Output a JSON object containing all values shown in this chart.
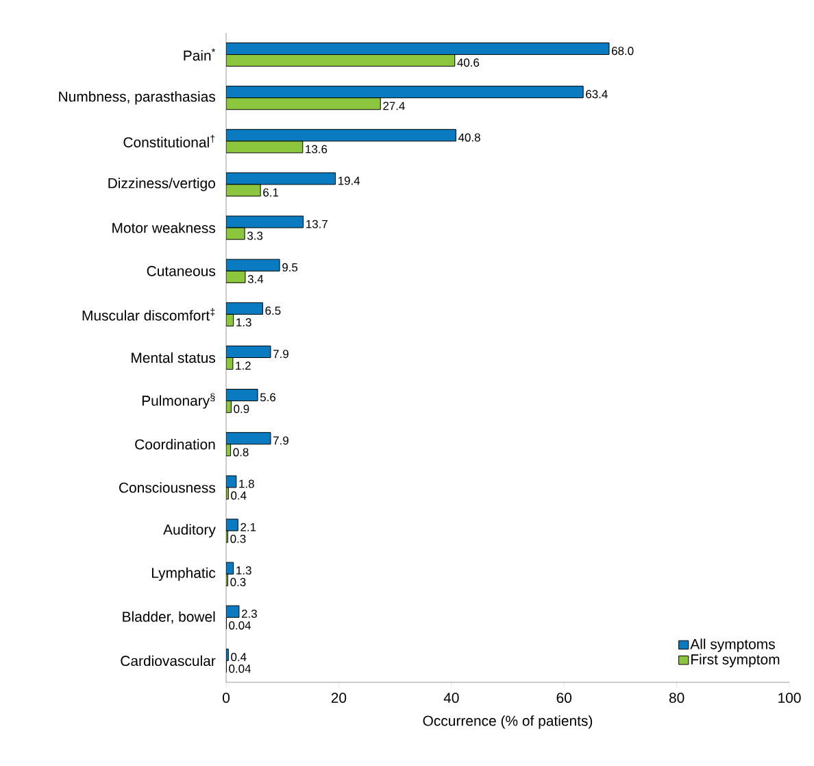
{
  "chart_data": {
    "type": "bar",
    "orientation": "horizontal",
    "xlabel": "Occurrence (% of patients)",
    "categories": [
      "Pain$^{*}$",
      "Numbness, parasthasias",
      "Constitutional$^{†}$",
      "Dizziness/vertigo",
      "Motor weakness",
      "Cutaneous",
      "Muscular discomfort$^{‡}$",
      "Mental status",
      "Pulmonary$^{§}$",
      "Coordination",
      "Consciousness",
      "Auditory",
      "Lymphatic",
      "Bladder, bowel",
      "Cardiovascular"
    ],
    "series": [
      {
        "name": "All symptoms",
        "color": "#0b7bc1",
        "values": [
          68.0,
          63.4,
          40.8,
          19.4,
          13.7,
          9.5,
          6.5,
          7.9,
          5.6,
          7.9,
          1.8,
          2.1,
          1.3,
          2.3,
          0.4
        ],
        "value_labels": [
          "68.0",
          "63.4",
          "40.8",
          "19.4",
          "13.7",
          "9.5",
          "6.5",
          "7.9",
          "5.6",
          "7.9",
          "1.8",
          "2.1",
          "1.3",
          "2.3",
          "0.4"
        ]
      },
      {
        "name": "First symptom",
        "color": "#8cc63f",
        "values": [
          40.6,
          27.4,
          13.6,
          6.1,
          3.3,
          3.4,
          1.3,
          1.2,
          0.9,
          0.8,
          0.4,
          0.3,
          0.3,
          0.04,
          0.04
        ],
        "value_labels": [
          "40.6",
          "27.4",
          "13.6",
          "6.1",
          "3.3",
          "3.4",
          "1.3",
          "1.2",
          "0.9",
          "0.8",
          "0.4",
          "0.3",
          "0.3",
          "0.04",
          "0.04"
        ]
      }
    ],
    "xlim": [
      0,
      100
    ],
    "xticks": [
      0,
      20,
      40,
      60,
      80,
      100
    ],
    "legend": "bottom right"
  }
}
